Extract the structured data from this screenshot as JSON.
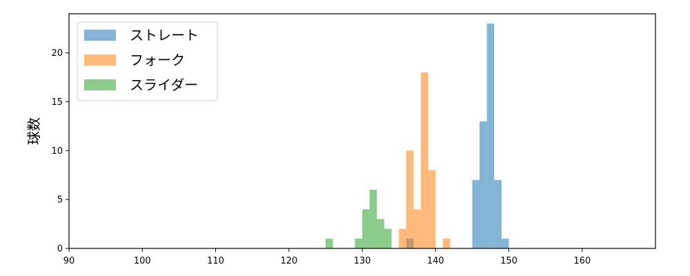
{
  "chart_data": {
    "type": "bar",
    "subtype": "histogram",
    "title": "",
    "xlabel": "",
    "ylabel": "球数",
    "xlim": [
      90,
      170
    ],
    "ylim": [
      0,
      24
    ],
    "xticks": [
      90,
      100,
      110,
      120,
      130,
      140,
      150,
      160
    ],
    "yticks": [
      0,
      5,
      10,
      15,
      20
    ],
    "grid": false,
    "legend_position": "top-left",
    "series": [
      {
        "name": "ストレート",
        "color": "#1f77b4",
        "bins": [
          {
            "x0": 136,
            "x1": 137,
            "count": 1
          },
          {
            "x0": 145,
            "x1": 146,
            "count": 7
          },
          {
            "x0": 146,
            "x1": 147,
            "count": 13
          },
          {
            "x0": 147,
            "x1": 148,
            "count": 23
          },
          {
            "x0": 148,
            "x1": 149,
            "count": 7
          },
          {
            "x0": 149,
            "x1": 150,
            "count": 1
          }
        ]
      },
      {
        "name": "フォーク",
        "color": "#ff7f0e",
        "bins": [
          {
            "x0": 135,
            "x1": 136,
            "count": 2
          },
          {
            "x0": 136,
            "x1": 137,
            "count": 10
          },
          {
            "x0": 137,
            "x1": 138,
            "count": 4
          },
          {
            "x0": 138,
            "x1": 139,
            "count": 18
          },
          {
            "x0": 139,
            "x1": 140,
            "count": 8
          },
          {
            "x0": 141,
            "x1": 142,
            "count": 1
          }
        ]
      },
      {
        "name": "スライダー",
        "color": "#2ca02c",
        "bins": [
          {
            "x0": 125,
            "x1": 126,
            "count": 1
          },
          {
            "x0": 129,
            "x1": 130,
            "count": 1
          },
          {
            "x0": 130,
            "x1": 131,
            "count": 4
          },
          {
            "x0": 131,
            "x1": 132,
            "count": 6
          },
          {
            "x0": 132,
            "x1": 133,
            "count": 3
          },
          {
            "x0": 133,
            "x1": 134,
            "count": 2
          }
        ]
      }
    ]
  }
}
